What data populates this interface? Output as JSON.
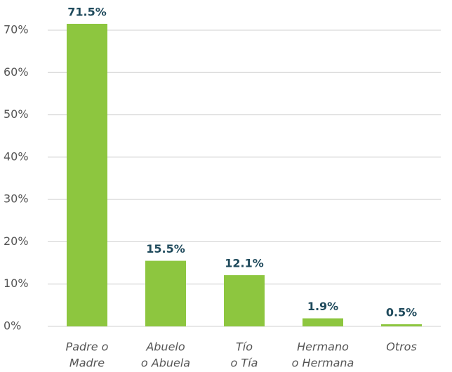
{
  "chart_data": {
    "type": "bar",
    "categories": [
      [
        "Padre o",
        "Madre"
      ],
      [
        "Abuelo",
        "o Abuela"
      ],
      [
        "Tío",
        "o Tía"
      ],
      [
        "Hermano",
        "o Hermana"
      ],
      [
        "Otros"
      ]
    ],
    "values": [
      71.5,
      15.5,
      12.1,
      1.9,
      0.5
    ],
    "value_labels": [
      "71.5%",
      "15.5%",
      "12.1%",
      "1.9%",
      "0.5%"
    ],
    "color": "#8dc63f",
    "ylim": [
      0,
      70
    ],
    "yticks": [
      {
        "value": 0,
        "label": "0%"
      },
      {
        "value": 10,
        "label": "10%"
      },
      {
        "value": 20,
        "label": "20%"
      },
      {
        "value": 30,
        "label": "30%"
      },
      {
        "value": 40,
        "label": "40%"
      },
      {
        "value": 50,
        "label": "50%"
      },
      {
        "value": 60,
        "label": "60%"
      },
      {
        "value": 70,
        "label": "70%"
      }
    ],
    "grid": true
  }
}
